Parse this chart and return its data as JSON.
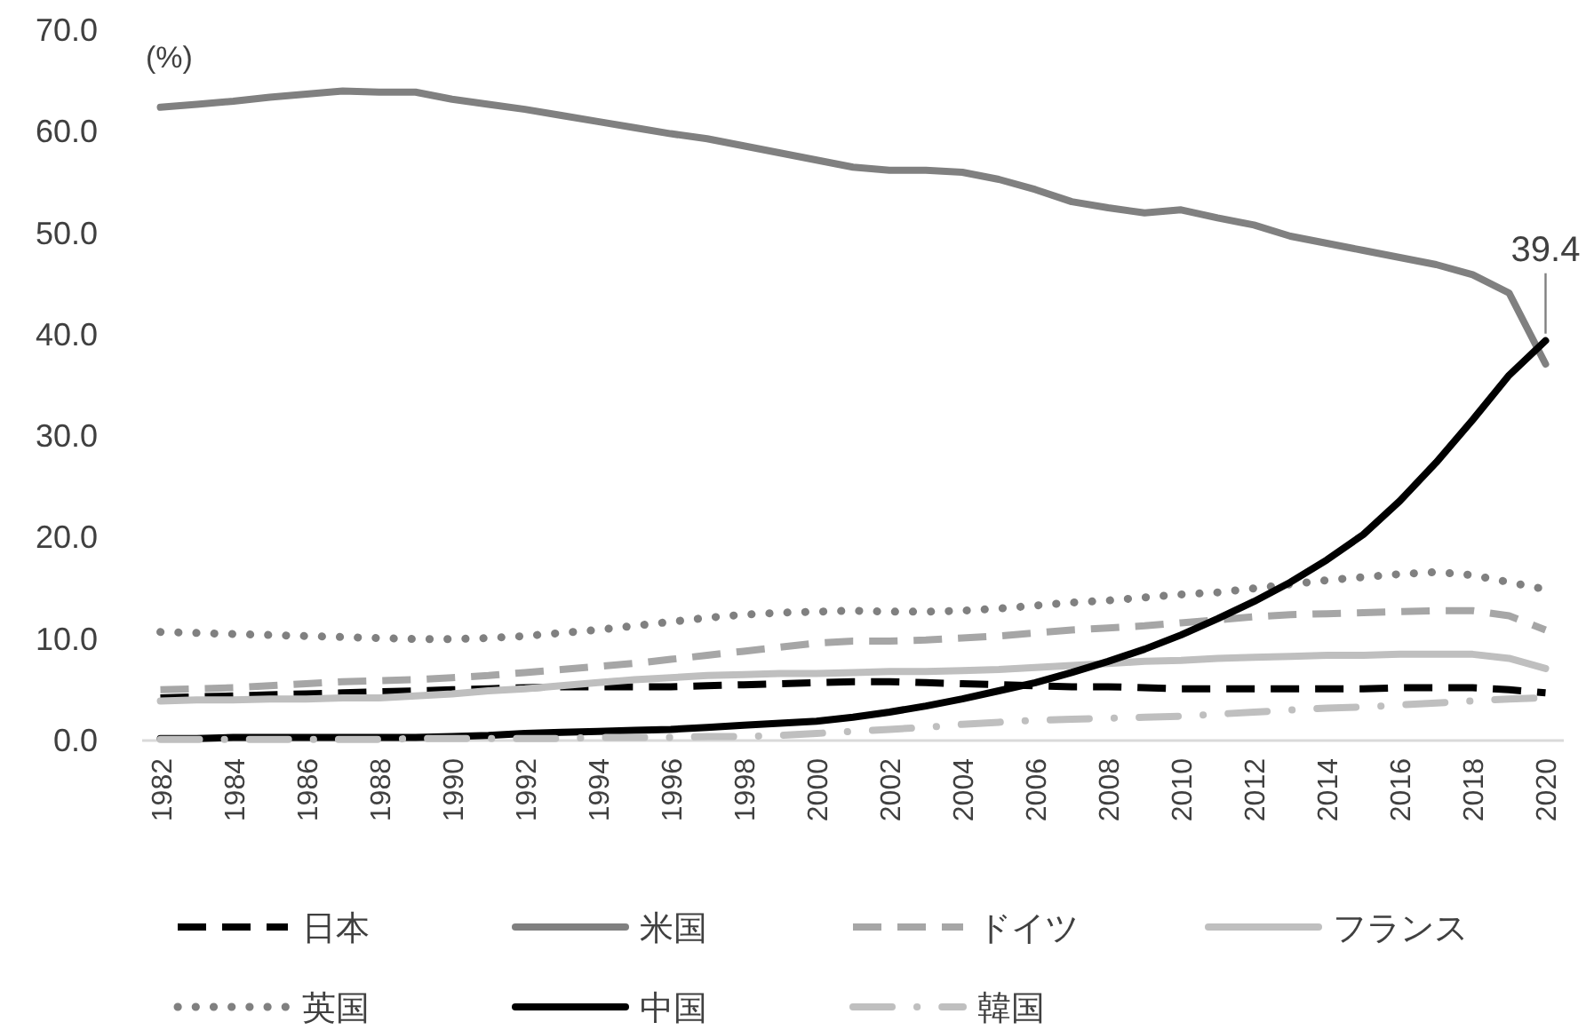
{
  "chart_data": {
    "type": "line",
    "ylabel": "(%)",
    "categories": [
      "1982",
      null,
      "1984",
      null,
      "1986",
      null,
      "1988",
      null,
      "1990",
      null,
      "1992",
      null,
      "1994",
      null,
      "1996",
      null,
      "1998",
      null,
      "2000",
      null,
      "2002",
      null,
      "2004",
      null,
      "2006",
      null,
      "2008",
      null,
      "2010",
      null,
      "2012",
      null,
      "2014",
      null,
      "2016",
      null,
      "2018",
      null,
      "2020"
    ],
    "ylim": [
      0,
      70
    ],
    "yticks": [
      {
        "value": 0,
        "label": "0.0"
      },
      {
        "value": 10,
        "label": "10.0"
      },
      {
        "value": 20,
        "label": "20.0"
      },
      {
        "value": 30,
        "label": "30.0"
      },
      {
        "value": 40,
        "label": "40.0"
      },
      {
        "value": 50,
        "label": "50.0"
      },
      {
        "value": 60,
        "label": "60.0"
      },
      {
        "value": 70,
        "label": "70.0"
      }
    ],
    "grid": false,
    "legend": "bottom",
    "annotations": [
      {
        "text": "39.4",
        "x": "2020",
        "y": 39.4
      }
    ],
    "series": [
      {
        "name": "日本",
        "color": "#000000",
        "line_style": "dashed",
        "values": [
          4.2,
          4.3,
          4.4,
          4.5,
          4.6,
          4.7,
          4.8,
          4.9,
          5.0,
          5.1,
          5.2,
          5.3,
          5.3,
          5.3,
          5.3,
          5.4,
          5.5,
          5.6,
          5.7,
          5.8,
          5.8,
          5.7,
          5.6,
          5.5,
          5.4,
          5.3,
          5.3,
          5.2,
          5.1,
          5.1,
          5.1,
          5.1,
          5.1,
          5.1,
          5.2,
          5.2,
          5.2,
          5.0,
          4.7
        ]
      },
      {
        "name": "米国",
        "color": "#808080",
        "line_style": "solid",
        "values": [
          62.4,
          62.7,
          63.0,
          63.4,
          63.7,
          64.0,
          63.9,
          63.9,
          63.2,
          62.7,
          62.2,
          61.6,
          61.0,
          60.4,
          59.8,
          59.3,
          58.6,
          57.9,
          57.2,
          56.5,
          56.2,
          56.2,
          56.0,
          55.3,
          54.3,
          53.1,
          52.5,
          52.0,
          52.3,
          51.5,
          50.8,
          49.7,
          49.0,
          48.3,
          47.6,
          46.9,
          45.9,
          44.1,
          37.1
        ]
      },
      {
        "name": "ドイツ",
        "color": "#a6a6a6",
        "line_style": "dashed",
        "values": [
          5.0,
          5.1,
          5.2,
          5.4,
          5.6,
          5.8,
          5.9,
          6.0,
          6.2,
          6.4,
          6.7,
          7.0,
          7.3,
          7.6,
          8.0,
          8.4,
          8.8,
          9.2,
          9.6,
          9.8,
          9.8,
          9.9,
          10.1,
          10.3,
          10.6,
          10.9,
          11.1,
          11.3,
          11.6,
          11.9,
          12.2,
          12.4,
          12.5,
          12.6,
          12.7,
          12.8,
          12.8,
          12.3,
          10.9
        ]
      },
      {
        "name": "フランス",
        "color": "#bfbfbf",
        "line_style": "solid",
        "values": [
          3.9,
          4.0,
          4.0,
          4.1,
          4.1,
          4.2,
          4.2,
          4.4,
          4.6,
          4.9,
          5.1,
          5.4,
          5.7,
          6.0,
          6.2,
          6.4,
          6.5,
          6.6,
          6.6,
          6.7,
          6.8,
          6.8,
          6.9,
          7.0,
          7.2,
          7.4,
          7.6,
          7.8,
          7.9,
          8.1,
          8.2,
          8.3,
          8.4,
          8.4,
          8.5,
          8.5,
          8.5,
          8.1,
          7.1
        ]
      },
      {
        "name": "英国",
        "color": "#808080",
        "line_style": "dotted",
        "values": [
          10.7,
          10.6,
          10.5,
          10.4,
          10.3,
          10.2,
          10.1,
          10.0,
          10.0,
          10.1,
          10.3,
          10.6,
          10.9,
          11.3,
          11.7,
          12.1,
          12.4,
          12.6,
          12.7,
          12.8,
          12.7,
          12.7,
          12.8,
          13.0,
          13.3,
          13.6,
          13.8,
          14.1,
          14.4,
          14.6,
          15.0,
          15.4,
          15.8,
          16.1,
          16.4,
          16.6,
          16.3,
          15.6,
          14.9
        ]
      },
      {
        "name": "中国",
        "color": "#000000",
        "line_style": "solid",
        "values": [
          0.2,
          0.2,
          0.3,
          0.3,
          0.3,
          0.3,
          0.3,
          0.3,
          0.4,
          0.5,
          0.7,
          0.8,
          0.9,
          1.0,
          1.1,
          1.3,
          1.5,
          1.7,
          1.9,
          2.3,
          2.8,
          3.4,
          4.1,
          4.9,
          5.7,
          6.7,
          7.8,
          9.0,
          10.4,
          12.0,
          13.7,
          15.6,
          17.8,
          20.3,
          23.6,
          27.4,
          31.6,
          36.0,
          39.4
        ]
      },
      {
        "name": "韓国",
        "color": "#bfbfbf",
        "line_style": "dashdot",
        "values": [
          0.1,
          0.1,
          0.1,
          0.1,
          0.1,
          0.1,
          0.1,
          0.2,
          0.2,
          0.2,
          0.2,
          0.2,
          0.3,
          0.3,
          0.3,
          0.4,
          0.4,
          0.5,
          0.7,
          0.9,
          1.1,
          1.3,
          1.6,
          1.8,
          2.0,
          2.1,
          2.2,
          2.3,
          2.4,
          2.6,
          2.8,
          3.0,
          3.2,
          3.3,
          3.5,
          3.7,
          3.9,
          4.1,
          4.2
        ]
      }
    ]
  }
}
